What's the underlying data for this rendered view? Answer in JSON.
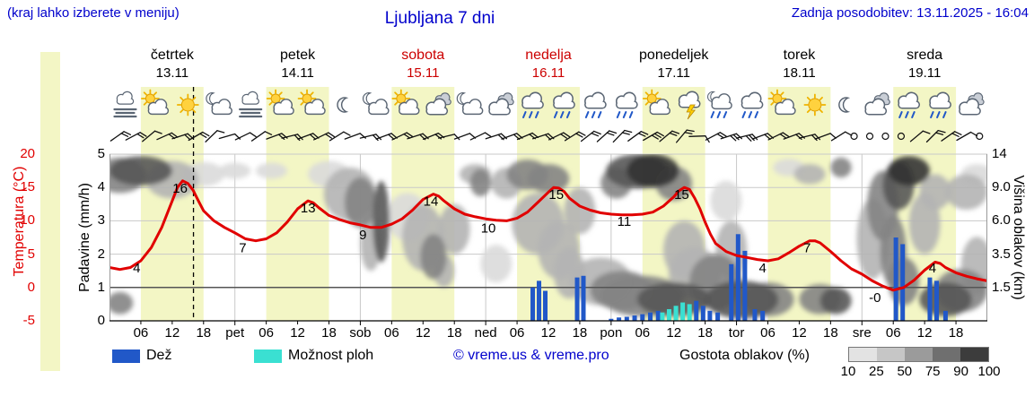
{
  "header": {
    "hint": "(kraj lahko izberete v meniju)",
    "title": "Ljubljana 7 dni",
    "updated": "Zadnja posodobitev: 13.11.2025 - 16:04"
  },
  "colors": {
    "link_blue": "#0000cc",
    "temp_red": "#e10000",
    "day_red": "#cc0000",
    "rain_blue": "#2158c8",
    "shower_cyan": "#3ae0d2",
    "day_band": "#f3f6c5",
    "grid": "#c9c9c9",
    "zero_line": "#555555",
    "axis": "#000000",
    "cloud_density": {
      "10": "#ededed",
      "25": "#dadada",
      "50": "#b4b4b4",
      "75": "#848484",
      "90": "#565656",
      "100": "#333333"
    },
    "density_scale": [
      "#e3e3e3",
      "#c6c6c6",
      "#9b9b9b",
      "#6f6f6f",
      "#3c3c3c"
    ]
  },
  "days": [
    {
      "name": "četrtek",
      "date": "13.11",
      "red": false
    },
    {
      "name": "petek",
      "date": "14.11",
      "red": false
    },
    {
      "name": "sobota",
      "date": "15.11",
      "red": true
    },
    {
      "name": "nedelja",
      "date": "16.11",
      "red": true
    },
    {
      "name": "ponedeljek",
      "date": "17.11",
      "red": false
    },
    {
      "name": "torek",
      "date": "18.11",
      "red": false
    },
    {
      "name": "sreda",
      "date": "19.11",
      "red": false
    }
  ],
  "axes": {
    "temp": {
      "label": "Temperatura (°C)",
      "ticks": [
        20,
        15,
        10,
        5,
        0,
        -5
      ]
    },
    "precip": {
      "label": "Padavine (mm/h)",
      "ticks": [
        5,
        4,
        3,
        2,
        1,
        0
      ]
    },
    "cloud": {
      "label": "Višina oblakov (km)",
      "ticks": [
        {
          "km": 14,
          "label": "14"
        },
        {
          "km": 9,
          "label": "9.0"
        },
        {
          "km": 6,
          "label": "6.0"
        },
        {
          "km": 3.5,
          "label": "3.5"
        },
        {
          "km": 1.5,
          "label": "1.5"
        }
      ]
    },
    "x": {
      "hours": [
        "06",
        "12",
        "18"
      ],
      "day_abbrevs": [
        "pet",
        "sob",
        "ned",
        "pon",
        "tor",
        "sre"
      ]
    }
  },
  "icons": [
    {
      "t": 3,
      "type": "fog"
    },
    {
      "t": 9,
      "type": "sun-cloud"
    },
    {
      "t": 15,
      "type": "sun"
    },
    {
      "t": 21,
      "type": "moon-cloud"
    },
    {
      "t": 27,
      "type": "fog"
    },
    {
      "t": 33,
      "type": "sun-cloud"
    },
    {
      "t": 39,
      "type": "sun-cloud"
    },
    {
      "t": 45,
      "type": "moon"
    },
    {
      "t": 51,
      "type": "moon-cloud"
    },
    {
      "t": 57,
      "type": "sun-cloud"
    },
    {
      "t": 63,
      "type": "cloud"
    },
    {
      "t": 69,
      "type": "moon-cloud"
    },
    {
      "t": 75,
      "type": "cloud"
    },
    {
      "t": 81,
      "type": "rain"
    },
    {
      "t": 87,
      "type": "rain"
    },
    {
      "t": 93,
      "type": "rain"
    },
    {
      "t": 99,
      "type": "rain"
    },
    {
      "t": 105,
      "type": "sun-cloud"
    },
    {
      "t": 111,
      "type": "thunder"
    },
    {
      "t": 117,
      "type": "moon-rain"
    },
    {
      "t": 123,
      "type": "rain"
    },
    {
      "t": 129,
      "type": "sun-cloud"
    },
    {
      "t": 135,
      "type": "sun"
    },
    {
      "t": 141,
      "type": "moon"
    },
    {
      "t": 147,
      "type": "cloud"
    },
    {
      "t": 153,
      "type": "rain"
    },
    {
      "t": 159,
      "type": "rain"
    },
    {
      "t": 165,
      "type": "cloud"
    }
  ],
  "wind": [
    [
      1.5,
      55,
      2
    ],
    [
      4.5,
      62,
      2
    ],
    [
      7.5,
      50,
      1
    ],
    [
      10.5,
      66,
      2
    ],
    [
      13.5,
      72,
      2
    ],
    [
      16.5,
      60,
      2
    ],
    [
      19.5,
      46,
      1
    ],
    [
      22.5,
      74,
      1
    ],
    [
      25.5,
      64,
      1
    ],
    [
      28.5,
      55,
      1
    ],
    [
      31.5,
      70,
      2
    ],
    [
      34.5,
      76,
      2
    ],
    [
      37.5,
      70,
      2
    ],
    [
      40.5,
      64,
      2
    ],
    [
      43.5,
      58,
      1
    ],
    [
      46.5,
      70,
      1
    ],
    [
      49.5,
      76,
      2
    ],
    [
      52.5,
      70,
      2
    ],
    [
      55.5,
      64,
      2
    ],
    [
      58.5,
      72,
      2
    ],
    [
      61.5,
      68,
      2
    ],
    [
      64.5,
      76,
      1
    ],
    [
      67.5,
      70,
      1
    ],
    [
      70.5,
      64,
      1
    ],
    [
      73.5,
      72,
      2
    ],
    [
      76.5,
      70,
      2
    ],
    [
      79.5,
      67,
      2
    ],
    [
      82.5,
      72,
      2
    ],
    [
      85.5,
      64,
      2
    ],
    [
      88.5,
      58,
      2
    ],
    [
      91.5,
      52,
      2
    ],
    [
      94.5,
      48,
      2
    ],
    [
      97.5,
      44,
      2
    ],
    [
      100.5,
      54,
      2
    ],
    [
      103.5,
      60,
      3
    ],
    [
      106.5,
      50,
      2
    ],
    [
      109.5,
      40,
      2
    ],
    [
      112.5,
      88,
      1
    ],
    [
      115.5,
      62,
      2
    ],
    [
      118.5,
      72,
      3
    ],
    [
      121.5,
      76,
      3
    ],
    [
      124.5,
      70,
      2
    ],
    [
      127.5,
      64,
      2
    ],
    [
      130.5,
      70,
      2
    ],
    [
      133.5,
      76,
      2
    ],
    [
      136.5,
      70,
      1
    ],
    [
      139.5,
      58,
      1
    ],
    [
      142.5,
      0,
      0
    ],
    [
      145.5,
      0,
      0
    ],
    [
      148.5,
      0,
      0
    ],
    [
      151.5,
      0,
      0
    ],
    [
      154.5,
      50,
      1
    ],
    [
      157.5,
      45,
      2
    ],
    [
      160.5,
      55,
      2
    ],
    [
      163.5,
      60,
      1
    ],
    [
      166.5,
      0,
      0
    ]
  ],
  "legend": {
    "rain": "Dež",
    "showers": "Možnost ploh",
    "credit": "© vreme.us & vreme.pro",
    "cloud_density": "Gostota oblakov (%)",
    "density_ticks": [
      "10",
      "25",
      "50",
      "75",
      "90",
      "100"
    ]
  },
  "chart_data": {
    "type": "meteogram",
    "hours_total": 168,
    "start_label": "četrtek 13.11 00:00",
    "now_hour": 16.07,
    "daytime_bands_hours": [
      6,
      18
    ],
    "y_temp_c": {
      "min": -5,
      "max": 20,
      "ticks": [
        20,
        15,
        10,
        5,
        0,
        -5
      ]
    },
    "y_precip_mm_h": {
      "min": 0,
      "max": 5,
      "ticks": [
        0,
        1,
        2,
        3,
        4,
        5
      ]
    },
    "y_cloud_km_ticks": [
      14,
      9.0,
      6.0,
      3.5,
      1.5
    ],
    "temperature_c": [
      [
        0,
        3
      ],
      [
        2,
        2.7
      ],
      [
        4,
        3
      ],
      [
        6,
        4
      ],
      [
        8,
        6
      ],
      [
        10,
        9
      ],
      [
        12,
        13
      ],
      [
        13,
        15
      ],
      [
        14,
        16
      ],
      [
        15,
        15.6
      ],
      [
        16,
        14.6
      ],
      [
        17,
        13
      ],
      [
        18,
        11.5
      ],
      [
        20,
        10
      ],
      [
        22,
        9
      ],
      [
        24,
        8.2
      ],
      [
        26,
        7.3
      ],
      [
        28,
        7
      ],
      [
        30,
        7.3
      ],
      [
        32,
        8.2
      ],
      [
        34,
        9.8
      ],
      [
        36,
        11.8
      ],
      [
        38,
        13
      ],
      [
        39,
        12.7
      ],
      [
        40,
        12
      ],
      [
        42,
        10.8
      ],
      [
        44,
        10.2
      ],
      [
        46,
        9.7
      ],
      [
        48,
        9.4
      ],
      [
        50,
        9
      ],
      [
        52,
        9
      ],
      [
        54,
        9.5
      ],
      [
        56,
        10.3
      ],
      [
        58,
        11.6
      ],
      [
        60,
        13.2
      ],
      [
        62,
        14
      ],
      [
        63,
        13.7
      ],
      [
        64,
        13
      ],
      [
        66,
        11.8
      ],
      [
        68,
        11
      ],
      [
        70,
        10.6
      ],
      [
        72,
        10.3
      ],
      [
        74,
        10.1
      ],
      [
        76,
        10
      ],
      [
        78,
        10.4
      ],
      [
        80,
        11.3
      ],
      [
        82,
        12.8
      ],
      [
        84,
        14.3
      ],
      [
        85,
        15
      ],
      [
        86,
        14.9
      ],
      [
        87,
        14.4
      ],
      [
        88,
        13.4
      ],
      [
        90,
        12.2
      ],
      [
        92,
        11.6
      ],
      [
        94,
        11.2
      ],
      [
        96,
        11
      ],
      [
        98,
        10.9
      ],
      [
        100,
        10.9
      ],
      [
        102,
        11
      ],
      [
        104,
        11.3
      ],
      [
        106,
        12.2
      ],
      [
        108,
        13.6
      ],
      [
        109,
        14.5
      ],
      [
        110,
        15
      ],
      [
        111,
        14.7
      ],
      [
        112,
        13.4
      ],
      [
        113,
        11.8
      ],
      [
        114,
        9.8
      ],
      [
        115,
        8
      ],
      [
        116,
        6.6
      ],
      [
        118,
        5.4
      ],
      [
        120,
        4.8
      ],
      [
        122,
        4.5
      ],
      [
        124,
        4.2
      ],
      [
        126,
        4
      ],
      [
        128,
        4.3
      ],
      [
        130,
        5.2
      ],
      [
        132,
        6.2
      ],
      [
        134,
        7
      ],
      [
        135,
        7
      ],
      [
        136,
        6.7
      ],
      [
        138,
        5.4
      ],
      [
        140,
        4
      ],
      [
        142,
        2.8
      ],
      [
        144,
        2
      ],
      [
        146,
        1
      ],
      [
        148,
        0.2
      ],
      [
        150,
        -0.4
      ],
      [
        152,
        0
      ],
      [
        154,
        1.1
      ],
      [
        156,
        2.6
      ],
      [
        158,
        3.8
      ],
      [
        159,
        3.6
      ],
      [
        160,
        3
      ],
      [
        162,
        2.2
      ],
      [
        164,
        1.7
      ],
      [
        166,
        1.3
      ],
      [
        168,
        1
      ]
    ],
    "temperature_labels": [
      {
        "t": 5.2,
        "v": 4,
        "text": "4"
      },
      {
        "t": 13.5,
        "v": 16,
        "text": "16"
      },
      {
        "t": 25.5,
        "v": 7,
        "text": "7"
      },
      {
        "t": 38,
        "v": 13,
        "text": "13"
      },
      {
        "t": 48.5,
        "v": 9,
        "text": "9"
      },
      {
        "t": 61.5,
        "v": 14,
        "text": "14"
      },
      {
        "t": 72.5,
        "v": 10,
        "text": "10"
      },
      {
        "t": 85.5,
        "v": 15,
        "text": "15"
      },
      {
        "t": 98.5,
        "v": 11,
        "text": "11"
      },
      {
        "t": 109.5,
        "v": 15,
        "text": "15"
      },
      {
        "t": 125,
        "v": 4,
        "text": "4"
      },
      {
        "t": 133.5,
        "v": 7,
        "text": "7"
      },
      {
        "t": 146.5,
        "v": -0.4,
        "text": "-0"
      },
      {
        "t": 157.5,
        "v": 4,
        "text": "4"
      }
    ],
    "rain_mm_h": [
      [
        81,
        1.0
      ],
      [
        82.2,
        1.2
      ],
      [
        83.4,
        0.9
      ],
      [
        89.5,
        1.3
      ],
      [
        90.7,
        1.35
      ],
      [
        96,
        0.06
      ],
      [
        97.5,
        0.1
      ],
      [
        99,
        0.12
      ],
      [
        100.5,
        0.16
      ],
      [
        102,
        0.2
      ],
      [
        103.5,
        0.25
      ],
      [
        105,
        0.3
      ],
      [
        112.3,
        0.6
      ],
      [
        113.6,
        0.45
      ],
      [
        114.9,
        0.3
      ],
      [
        116.4,
        0.25
      ],
      [
        119,
        1.7
      ],
      [
        120.3,
        2.6
      ],
      [
        121.6,
        2.1
      ],
      [
        123.5,
        0.35
      ],
      [
        125,
        0.3
      ],
      [
        150.5,
        2.5
      ],
      [
        151.8,
        2.3
      ],
      [
        157,
        1.3
      ],
      [
        158.3,
        1.2
      ],
      [
        160,
        0.3
      ]
    ],
    "showers_mm_h": [
      [
        105.8,
        0.25
      ],
      [
        107.1,
        0.35
      ],
      [
        108.4,
        0.45
      ],
      [
        109.7,
        0.55
      ],
      [
        111,
        0.5
      ]
    ],
    "clouds_t_km_dt_dkm_pct": [
      [
        2,
        11,
        5,
        2.5,
        75
      ],
      [
        6,
        11.5,
        6,
        2.2,
        90
      ],
      [
        12,
        10.5,
        5,
        2.5,
        50
      ],
      [
        18,
        11,
        4,
        1.8,
        25
      ],
      [
        2,
        0.8,
        2.5,
        0.5,
        75
      ],
      [
        24,
        11.5,
        3,
        1.2,
        25
      ],
      [
        31,
        11.5,
        3,
        1.2,
        25
      ],
      [
        42,
        11,
        4,
        2,
        25
      ],
      [
        46,
        9,
        5,
        3,
        50
      ],
      [
        48,
        8,
        3,
        2.5,
        75
      ],
      [
        52,
        6.5,
        1.6,
        3.5,
        90
      ],
      [
        50,
        4.5,
        2,
        2,
        50
      ],
      [
        57,
        6.5,
        4,
        2,
        25
      ],
      [
        60,
        5,
        4,
        2.5,
        50
      ],
      [
        62,
        3.5,
        2.5,
        1.5,
        75
      ],
      [
        64,
        2.5,
        2,
        1,
        50
      ],
      [
        66,
        5.5,
        3,
        2,
        50
      ],
      [
        70,
        11,
        3,
        1.5,
        50
      ],
      [
        71,
        10,
        2,
        1.8,
        75
      ],
      [
        74,
        3,
        3,
        1.2,
        25
      ],
      [
        76,
        10,
        3,
        2,
        50
      ],
      [
        80,
        11,
        4,
        2.2,
        75
      ],
      [
        84,
        10.5,
        4,
        2,
        75
      ],
      [
        82,
        6,
        5,
        2.5,
        50
      ],
      [
        86,
        4,
        4,
        2,
        50
      ],
      [
        88,
        2.5,
        3,
        1.5,
        50
      ],
      [
        90,
        7,
        3,
        2,
        50
      ],
      [
        94,
        2,
        6,
        1.3,
        50
      ],
      [
        98,
        1.5,
        6,
        1,
        75
      ],
      [
        97,
        10,
        3,
        2,
        75
      ],
      [
        101,
        11.5,
        6,
        2.6,
        90
      ],
      [
        104,
        11.5,
        5,
        2.5,
        100
      ],
      [
        108,
        10,
        3.5,
        2.2,
        75
      ],
      [
        102,
        1.2,
        8,
        1,
        75
      ],
      [
        108,
        1,
        7,
        0.8,
        90
      ],
      [
        112,
        2.5,
        5,
        1.5,
        50
      ],
      [
        110,
        4,
        4,
        2,
        50
      ],
      [
        116,
        2,
        5,
        1.5,
        75
      ],
      [
        119,
        4,
        3,
        2,
        50
      ],
      [
        121,
        1,
        7,
        0.9,
        90
      ],
      [
        118,
        8,
        3,
        2,
        25
      ],
      [
        126,
        1,
        5,
        0.8,
        75
      ],
      [
        130,
        12,
        3,
        1.3,
        25
      ],
      [
        134,
        11,
        3,
        1.5,
        50
      ],
      [
        136,
        1,
        4,
        0.7,
        75
      ],
      [
        139,
        0.9,
        3,
        0.6,
        90
      ],
      [
        140,
        12,
        2,
        1.5,
        75
      ],
      [
        146,
        5,
        3,
        3,
        50
      ],
      [
        148,
        8,
        3,
        3.5,
        75
      ],
      [
        151,
        10,
        3,
        3,
        90
      ],
      [
        153,
        11.5,
        4,
        2.2,
        100
      ],
      [
        150,
        4,
        2.5,
        2.5,
        75
      ],
      [
        152,
        2,
        3,
        1.3,
        75
      ],
      [
        156,
        6,
        3,
        2.5,
        50
      ],
      [
        158,
        9,
        3,
        2,
        50
      ],
      [
        160,
        1,
        5,
        0.8,
        90
      ],
      [
        163,
        1.5,
        5,
        1.1,
        75
      ],
      [
        164,
        9,
        4,
        2,
        50
      ],
      [
        166,
        3,
        3,
        1.8,
        50
      ],
      [
        166,
        11,
        3,
        1.5,
        25
      ]
    ]
  }
}
